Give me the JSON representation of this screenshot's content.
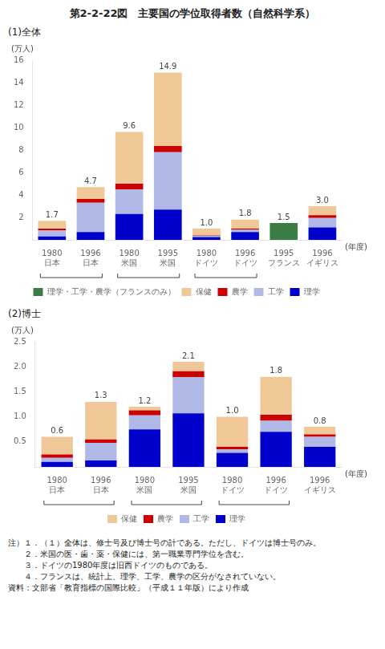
{
  "chart_data": [
    {
      "type": "bar",
      "title": "第2-2-22図　主要国の学位取得者数（自然科学系）",
      "subtitle": "(1)全体",
      "ylabel": "(万人)",
      "xlabel": "(年度)",
      "stacked": true,
      "grid": false,
      "legend": "bottom",
      "categories": [
        [
          "1980",
          "日本"
        ],
        [
          "1996",
          "日本"
        ],
        [
          "1980",
          "米国"
        ],
        [
          "1995",
          "米国"
        ],
        [
          "1980",
          "ドイツ"
        ],
        [
          "1996",
          "ドイツ"
        ],
        [
          "1995",
          "フランス"
        ],
        [
          "1996",
          "イギリス"
        ]
      ],
      "series": [
        {
          "name": "理学",
          "color": "#0000CC",
          "values": [
            0.3,
            0.7,
            2.3,
            2.7,
            0.25,
            0.7,
            0.0,
            1.1
          ]
        },
        {
          "name": "工学",
          "color": "#B0B8E8",
          "values": [
            0.55,
            2.6,
            2.2,
            5.1,
            0.1,
            0.2,
            0.0,
            0.85
          ]
        },
        {
          "name": "農学",
          "color": "#CC0000",
          "values": [
            0.15,
            0.35,
            0.5,
            0.55,
            0.05,
            0.1,
            0.0,
            0.25
          ]
        },
        {
          "name": "保健",
          "color": "#F0C898",
          "values": [
            0.7,
            1.05,
            4.6,
            6.55,
            0.6,
            0.8,
            0.0,
            0.8
          ]
        },
        {
          "name": "理学・工学・農学（フランスのみ）",
          "color": "#3A7D44",
          "values": [
            0.0,
            0.0,
            0.0,
            0.0,
            0.0,
            0.0,
            1.5,
            0.0
          ]
        }
      ],
      "totals": [
        1.7,
        4.7,
        9.6,
        14.9,
        1.0,
        1.8,
        1.5,
        3.0
      ],
      "total_labels": [
        "1.7",
        "4.7",
        "9.6",
        "14.9",
        "1.0",
        "1.8",
        "1.5",
        "3.0"
      ],
      "ylim": [
        0,
        16
      ],
      "yticks": [
        2,
        4,
        6,
        8,
        10,
        12,
        14,
        16
      ]
    },
    {
      "type": "bar",
      "subtitle": "(2)博士",
      "ylabel": "(万人)",
      "xlabel": "(年度)",
      "stacked": true,
      "grid": false,
      "legend": "bottom",
      "categories": [
        [
          "1980",
          "日本"
        ],
        [
          "1996",
          "日本"
        ],
        [
          "1980",
          "米国"
        ],
        [
          "1995",
          "米国"
        ],
        [
          "1980",
          "ドイツ"
        ],
        [
          "1996",
          "ドイツ"
        ],
        [
          "1996",
          "イギリス"
        ]
      ],
      "series": [
        {
          "name": "理学",
          "color": "#0000CC",
          "values": [
            0.1,
            0.13,
            0.75,
            1.07,
            0.28,
            0.7,
            0.4
          ]
        },
        {
          "name": "工学",
          "color": "#B0B8E8",
          "values": [
            0.08,
            0.35,
            0.28,
            0.72,
            0.07,
            0.22,
            0.2
          ]
        },
        {
          "name": "農学",
          "color": "#CC0000",
          "values": [
            0.07,
            0.07,
            0.1,
            0.12,
            0.05,
            0.12,
            0.05
          ]
        },
        {
          "name": "保健",
          "color": "#F0C898",
          "values": [
            0.35,
            0.75,
            0.07,
            0.19,
            0.6,
            0.76,
            0.15
          ]
        }
      ],
      "totals": [
        0.6,
        1.3,
        1.2,
        2.1,
        1.0,
        1.8,
        0.8
      ],
      "total_labels": [
        "0.6",
        "1.3",
        "1.2",
        "2.1",
        "1.0",
        "1.8",
        "0.8"
      ],
      "ylim": [
        0,
        2.5
      ],
      "yticks": [
        0.5,
        {
          "value": 1.0,
          "label": "1.0"
        },
        1.5,
        {
          "value": 2.0,
          "label": "2.0"
        },
        2.5
      ],
      "notes": [
        "注）１．（１）全体は、修士号及び博士号の計である。ただし、ドイツは博士号のみ。",
        "　　２．米国の医・歯・薬・保健には、第一職業専門学位を含む。",
        "　　３．ドイツの1980年度は旧西ドイツのものである。",
        "　　４．フランスは、統計上、理学、工学、農学の区分がなされていない。"
      ],
      "source": "資料：文部省「教育指標の国際比較」（平成１１年版）により作成"
    }
  ]
}
